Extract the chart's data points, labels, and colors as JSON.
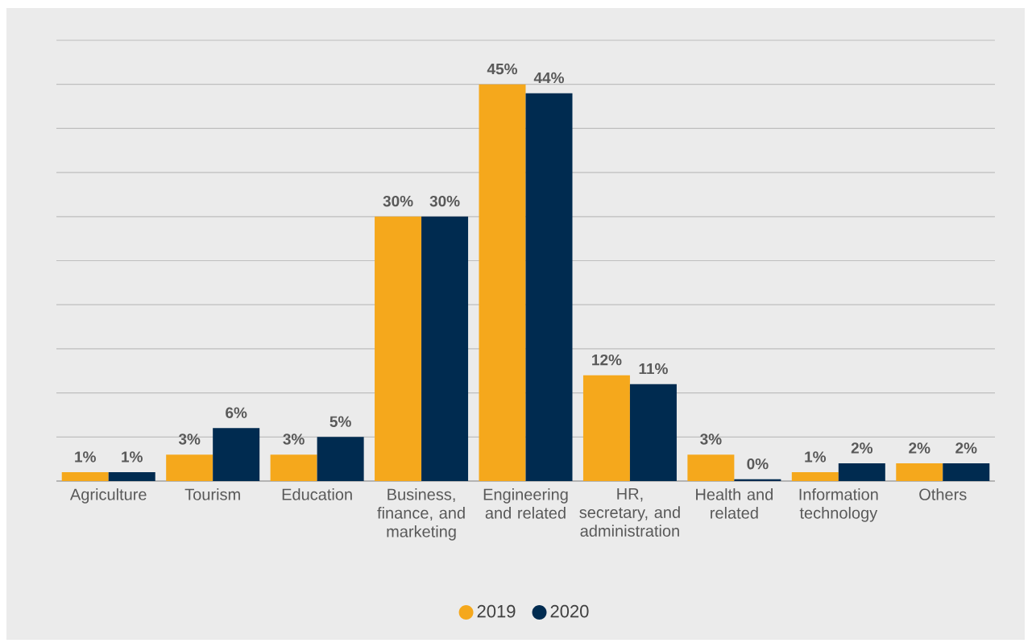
{
  "chart_data": {
    "type": "bar",
    "categories": [
      "Agriculture",
      "Tourism",
      "Education",
      "Business, finance, and marketing",
      "Engineering and related",
      "HR, secretary, and administration",
      "Health and related",
      "Information technology",
      "Others"
    ],
    "series": [
      {
        "name": "2019",
        "color": "#f5a81c",
        "values": [
          1,
          3,
          3,
          30,
          45,
          12,
          3,
          1,
          2
        ],
        "value_labels": [
          "1%",
          "3%",
          "3%",
          "30%",
          "45%",
          "12%",
          "3%",
          "1%",
          "2%"
        ]
      },
      {
        "name": "2020",
        "color": "#002b50",
        "values": [
          1,
          6,
          5,
          30,
          44,
          11,
          0.2,
          2,
          2
        ],
        "value_labels": [
          "1%",
          "6%",
          "5%",
          "30%",
          "44%",
          "11%",
          "0%",
          "2%",
          "2%"
        ]
      }
    ],
    "ylim": [
      0,
      50
    ],
    "yticks": [
      {
        "value": 0,
        "label": null
      },
      {
        "value": 5,
        "label": null
      },
      {
        "value": 10,
        "label": null
      },
      {
        "value": 15,
        "label": null
      },
      {
        "value": 20,
        "label": null
      },
      {
        "value": 25,
        "label": null
      },
      {
        "value": 30,
        "label": null
      },
      {
        "value": 35,
        "label": null
      },
      {
        "value": 40,
        "label": null
      },
      {
        "value": 45,
        "label": null
      },
      {
        "value": 50,
        "label": null
      }
    ],
    "tick_labels": "x",
    "grid": "y",
    "legend": "bottom",
    "marker": "circle"
  }
}
